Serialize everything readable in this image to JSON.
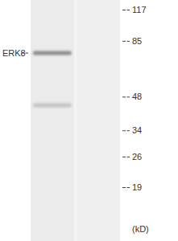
{
  "chart_data": {
    "type": "western_blot",
    "ylabel": "(kD)",
    "log": "y",
    "ylim": [
      117,
      19
    ],
    "yticks": [
      117,
      85,
      48,
      34,
      26,
      19
    ],
    "tick_labels": "y",
    "lanes": [
      {
        "bands": [
          75,
          44
        ]
      },
      {
        "bands": []
      }
    ],
    "annotations": [
      {
        "text": "ERK8",
        "y": 75
      }
    ]
  }
}
